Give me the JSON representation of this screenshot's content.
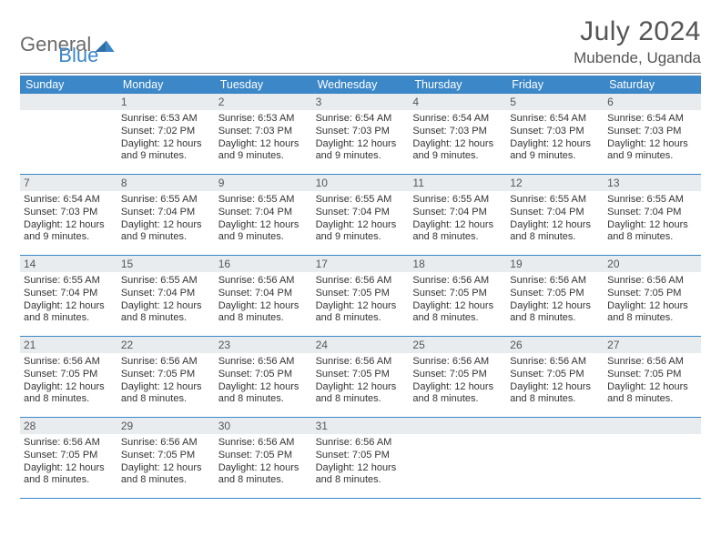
{
  "brand": {
    "part1": "General",
    "part2": "Blue",
    "logo_color": "#3b87c8"
  },
  "title": "July 2024",
  "location": "Mubende, Uganda",
  "colors": {
    "header_bar": "#3b87c8",
    "daynum_bg": "#e9ecef",
    "week_border": "#3b87c8",
    "text": "#333333",
    "muted": "#555555",
    "rule": "#888888",
    "background": "#ffffff"
  },
  "typography": {
    "title_fontsize": 30,
    "location_fontsize": 17,
    "dow_fontsize": 12.5,
    "daynum_fontsize": 12,
    "body_fontsize": 11,
    "logo_fontsize": 22
  },
  "days_of_week": [
    "Sunday",
    "Monday",
    "Tuesday",
    "Wednesday",
    "Thursday",
    "Friday",
    "Saturday"
  ],
  "weeks": [
    [
      {
        "num": "",
        "lines": []
      },
      {
        "num": "1",
        "lines": [
          "Sunrise: 6:53 AM",
          "Sunset: 7:02 PM",
          "Daylight: 12 hours and 9 minutes."
        ]
      },
      {
        "num": "2",
        "lines": [
          "Sunrise: 6:53 AM",
          "Sunset: 7:03 PM",
          "Daylight: 12 hours and 9 minutes."
        ]
      },
      {
        "num": "3",
        "lines": [
          "Sunrise: 6:54 AM",
          "Sunset: 7:03 PM",
          "Daylight: 12 hours and 9 minutes."
        ]
      },
      {
        "num": "4",
        "lines": [
          "Sunrise: 6:54 AM",
          "Sunset: 7:03 PM",
          "Daylight: 12 hours and 9 minutes."
        ]
      },
      {
        "num": "5",
        "lines": [
          "Sunrise: 6:54 AM",
          "Sunset: 7:03 PM",
          "Daylight: 12 hours and 9 minutes."
        ]
      },
      {
        "num": "6",
        "lines": [
          "Sunrise: 6:54 AM",
          "Sunset: 7:03 PM",
          "Daylight: 12 hours and 9 minutes."
        ]
      }
    ],
    [
      {
        "num": "7",
        "lines": [
          "Sunrise: 6:54 AM",
          "Sunset: 7:03 PM",
          "Daylight: 12 hours and 9 minutes."
        ]
      },
      {
        "num": "8",
        "lines": [
          "Sunrise: 6:55 AM",
          "Sunset: 7:04 PM",
          "Daylight: 12 hours and 9 minutes."
        ]
      },
      {
        "num": "9",
        "lines": [
          "Sunrise: 6:55 AM",
          "Sunset: 7:04 PM",
          "Daylight: 12 hours and 9 minutes."
        ]
      },
      {
        "num": "10",
        "lines": [
          "Sunrise: 6:55 AM",
          "Sunset: 7:04 PM",
          "Daylight: 12 hours and 9 minutes."
        ]
      },
      {
        "num": "11",
        "lines": [
          "Sunrise: 6:55 AM",
          "Sunset: 7:04 PM",
          "Daylight: 12 hours and 8 minutes."
        ]
      },
      {
        "num": "12",
        "lines": [
          "Sunrise: 6:55 AM",
          "Sunset: 7:04 PM",
          "Daylight: 12 hours and 8 minutes."
        ]
      },
      {
        "num": "13",
        "lines": [
          "Sunrise: 6:55 AM",
          "Sunset: 7:04 PM",
          "Daylight: 12 hours and 8 minutes."
        ]
      }
    ],
    [
      {
        "num": "14",
        "lines": [
          "Sunrise: 6:55 AM",
          "Sunset: 7:04 PM",
          "Daylight: 12 hours and 8 minutes."
        ]
      },
      {
        "num": "15",
        "lines": [
          "Sunrise: 6:55 AM",
          "Sunset: 7:04 PM",
          "Daylight: 12 hours and 8 minutes."
        ]
      },
      {
        "num": "16",
        "lines": [
          "Sunrise: 6:56 AM",
          "Sunset: 7:04 PM",
          "Daylight: 12 hours and 8 minutes."
        ]
      },
      {
        "num": "17",
        "lines": [
          "Sunrise: 6:56 AM",
          "Sunset: 7:05 PM",
          "Daylight: 12 hours and 8 minutes."
        ]
      },
      {
        "num": "18",
        "lines": [
          "Sunrise: 6:56 AM",
          "Sunset: 7:05 PM",
          "Daylight: 12 hours and 8 minutes."
        ]
      },
      {
        "num": "19",
        "lines": [
          "Sunrise: 6:56 AM",
          "Sunset: 7:05 PM",
          "Daylight: 12 hours and 8 minutes."
        ]
      },
      {
        "num": "20",
        "lines": [
          "Sunrise: 6:56 AM",
          "Sunset: 7:05 PM",
          "Daylight: 12 hours and 8 minutes."
        ]
      }
    ],
    [
      {
        "num": "21",
        "lines": [
          "Sunrise: 6:56 AM",
          "Sunset: 7:05 PM",
          "Daylight: 12 hours and 8 minutes."
        ]
      },
      {
        "num": "22",
        "lines": [
          "Sunrise: 6:56 AM",
          "Sunset: 7:05 PM",
          "Daylight: 12 hours and 8 minutes."
        ]
      },
      {
        "num": "23",
        "lines": [
          "Sunrise: 6:56 AM",
          "Sunset: 7:05 PM",
          "Daylight: 12 hours and 8 minutes."
        ]
      },
      {
        "num": "24",
        "lines": [
          "Sunrise: 6:56 AM",
          "Sunset: 7:05 PM",
          "Daylight: 12 hours and 8 minutes."
        ]
      },
      {
        "num": "25",
        "lines": [
          "Sunrise: 6:56 AM",
          "Sunset: 7:05 PM",
          "Daylight: 12 hours and 8 minutes."
        ]
      },
      {
        "num": "26",
        "lines": [
          "Sunrise: 6:56 AM",
          "Sunset: 7:05 PM",
          "Daylight: 12 hours and 8 minutes."
        ]
      },
      {
        "num": "27",
        "lines": [
          "Sunrise: 6:56 AM",
          "Sunset: 7:05 PM",
          "Daylight: 12 hours and 8 minutes."
        ]
      }
    ],
    [
      {
        "num": "28",
        "lines": [
          "Sunrise: 6:56 AM",
          "Sunset: 7:05 PM",
          "Daylight: 12 hours and 8 minutes."
        ]
      },
      {
        "num": "29",
        "lines": [
          "Sunrise: 6:56 AM",
          "Sunset: 7:05 PM",
          "Daylight: 12 hours and 8 minutes."
        ]
      },
      {
        "num": "30",
        "lines": [
          "Sunrise: 6:56 AM",
          "Sunset: 7:05 PM",
          "Daylight: 12 hours and 8 minutes."
        ]
      },
      {
        "num": "31",
        "lines": [
          "Sunrise: 6:56 AM",
          "Sunset: 7:05 PM",
          "Daylight: 12 hours and 8 minutes."
        ]
      },
      {
        "num": "",
        "lines": []
      },
      {
        "num": "",
        "lines": []
      },
      {
        "num": "",
        "lines": []
      }
    ]
  ]
}
